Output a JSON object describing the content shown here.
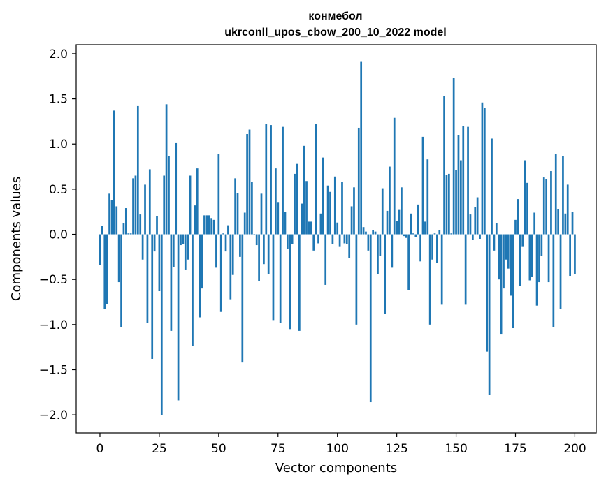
{
  "chart_data": {
    "type": "bar",
    "title_line1": "конмебол",
    "title_line2": "ukrconll_upos_cbow_200_10_2022 model",
    "xlabel": "Vector components",
    "ylabel": "Components values",
    "xlim": [
      -10,
      209
    ],
    "ylim": [
      -2.2,
      2.1
    ],
    "x_ticks": [
      0,
      25,
      50,
      75,
      100,
      125,
      150,
      175,
      200
    ],
    "y_ticks": [
      -2.0,
      -1.5,
      -1.0,
      -0.5,
      0.0,
      0.5,
      1.0,
      1.5,
      2.0
    ],
    "x_tick_labels": [
      "0",
      "25",
      "50",
      "75",
      "100",
      "125",
      "150",
      "175",
      "200"
    ],
    "y_tick_labels": [
      "−2.0",
      "−1.5",
      "−1.0",
      "−0.5",
      "0.0",
      "0.5",
      "1.0",
      "1.5",
      "2.0"
    ],
    "bar_color": "#1f77b4",
    "grid": false,
    "values": [
      -0.34,
      0.09,
      -0.83,
      -0.77,
      0.45,
      0.38,
      1.37,
      0.31,
      -0.53,
      -1.03,
      0.12,
      0.29,
      0.01,
      0.01,
      0.62,
      0.65,
      1.42,
      0.22,
      -0.28,
      0.55,
      -0.98,
      0.72,
      -1.38,
      -0.19,
      0.2,
      -0.63,
      -2.0,
      0.65,
      1.44,
      0.87,
      -1.07,
      -0.36,
      1.01,
      -1.84,
      -0.12,
      -0.11,
      -0.39,
      -0.28,
      0.65,
      -1.24,
      0.32,
      0.73,
      -0.92,
      -0.6,
      0.21,
      0.21,
      0.21,
      0.18,
      0.16,
      -0.37,
      0.89,
      -0.86,
      0.01,
      -0.19,
      0.1,
      -0.72,
      -0.45,
      0.62,
      0.46,
      -0.25,
      -1.42,
      0.24,
      1.11,
      1.16,
      0.58,
      -0.01,
      -0.12,
      -0.52,
      0.45,
      -0.33,
      1.22,
      -0.44,
      1.21,
      -0.95,
      0.73,
      0.35,
      -0.98,
      1.19,
      0.25,
      -0.16,
      -1.05,
      -0.11,
      0.67,
      0.78,
      -1.07,
      0.34,
      0.98,
      0.59,
      0.14,
      0.14,
      -0.18,
      1.22,
      -0.1,
      0.23,
      0.85,
      -0.56,
      0.54,
      0.47,
      -0.11,
      0.64,
      0.13,
      -0.14,
      0.58,
      -0.1,
      -0.11,
      -0.26,
      0.31,
      0.52,
      -1.0,
      1.18,
      1.91,
      0.08,
      0.03,
      -0.18,
      -1.86,
      0.05,
      0.03,
      -0.44,
      -0.24,
      0.51,
      -0.88,
      0.26,
      0.75,
      -0.37,
      1.29,
      0.15,
      0.27,
      0.52,
      -0.02,
      -0.04,
      -0.62,
      0.23,
      0.01,
      -0.03,
      0.33,
      -0.3,
      1.08,
      0.14,
      0.83,
      -1.0,
      -0.28,
      0.01,
      -0.32,
      0.05,
      -0.78,
      1.53,
      0.66,
      0.67,
      0.01,
      1.73,
      0.71,
      1.1,
      0.82,
      1.2,
      -0.78,
      1.19,
      0.22,
      -0.06,
      0.3,
      0.41,
      -0.05,
      1.46,
      1.4,
      -1.3,
      -1.78,
      1.06,
      -0.18,
      0.12,
      -0.5,
      -1.11,
      -0.6,
      -0.28,
      -0.38,
      -0.68,
      -1.04,
      0.16,
      0.39,
      -0.57,
      -0.14,
      0.82,
      0.57,
      -0.51,
      -0.47,
      0.24,
      -0.79,
      -0.53,
      -0.24,
      0.63,
      0.61,
      -0.53,
      0.7,
      -1.03,
      0.89,
      0.28,
      -0.83,
      0.87,
      0.23,
      0.55,
      -0.46,
      0.25,
      -0.44
    ]
  }
}
